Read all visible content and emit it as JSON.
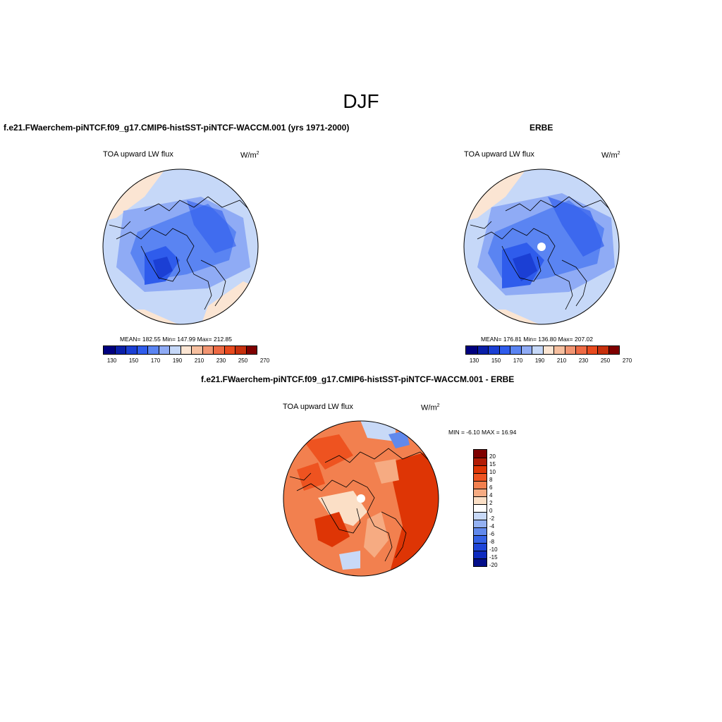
{
  "figure": {
    "title": "DJF"
  },
  "panels": [
    {
      "title": "f.e21.FWaerchem-piNTCF.f09_g17.CMIP6-histSST-piNTCF-WACCM.001 (yrs 1971-2000)",
      "variable": "TOA upward LW flux",
      "units": "W/m",
      "units_sup": "2",
      "stats": "MEAN= 182.55   Min= 147.99   Max= 212.85"
    },
    {
      "title": "ERBE",
      "variable": "TOA upward LW flux",
      "units": "W/m",
      "units_sup": "2",
      "stats": "MEAN= 176.81   Min= 136.80   Max= 207.02"
    },
    {
      "title": "f.e21.FWaerchem-piNTCF.f09_g17.CMIP6-histSST-piNTCF-WACCM.001 - ERBE",
      "variable": "TOA upward LW flux",
      "units": "W/m",
      "units_sup": "2",
      "stats": "MIN =  -6.10 MAX =  16.94"
    }
  ],
  "colorbars": {
    "abs_colors": [
      "#00007f",
      "#0a1fa8",
      "#1b3fd4",
      "#2f5cec",
      "#5a84f2",
      "#8fabf5",
      "#c6d8f8",
      "#fbe5d3",
      "#f6bf9f",
      "#f29572",
      "#ee6a44",
      "#e84a1e",
      "#c7300d",
      "#7f0000"
    ],
    "abs_ticks": [
      "130",
      "150",
      "170",
      "190",
      "210",
      "230",
      "250",
      "270"
    ],
    "diff_colors": [
      "#7f0000",
      "#b21c06",
      "#de3505",
      "#ee5320",
      "#f2804f",
      "#f6ab82",
      "#fbdfc6",
      "#ffffff",
      "#c8d9f7",
      "#94b1f2",
      "#6189ec",
      "#3562e6",
      "#1e45d8",
      "#0e2bbf",
      "#040f8a"
    ],
    "diff_ticks": [
      "20",
      "15",
      "10",
      "8",
      "6",
      "4",
      "2",
      "0",
      "-2",
      "-4",
      "-6",
      "-8",
      "-10",
      "-15",
      "-20"
    ]
  },
  "chart_data": {
    "type": "heatmap",
    "projection": "north polar stereographic",
    "season": "DJF",
    "maps": [
      {
        "name": "f.e21.FWaerchem-piNTCF.f09_g17.CMIP6-histSST-piNTCF-WACCM.001 (yrs 1971-2000)",
        "mean": 182.55,
        "min": 147.99,
        "max": 212.85,
        "levels": [
          130,
          140,
          150,
          160,
          170,
          180,
          190,
          200,
          210,
          220,
          230,
          240,
          250,
          260,
          270
        ]
      },
      {
        "name": "ERBE",
        "mean": 176.81,
        "min": 136.8,
        "max": 207.02,
        "levels": [
          130,
          140,
          150,
          160,
          170,
          180,
          190,
          200,
          210,
          220,
          230,
          240,
          250,
          260,
          270
        ]
      },
      {
        "name": "f.e21.FWaerchem-piNTCF.f09_g17.CMIP6-histSST-piNTCF-WACCM.001 - ERBE",
        "min": -6.1,
        "max": 16.94,
        "levels": [
          -20,
          -15,
          -10,
          -8,
          -6,
          -4,
          -2,
          0,
          2,
          4,
          6,
          8,
          10,
          15,
          20
        ]
      }
    ]
  }
}
